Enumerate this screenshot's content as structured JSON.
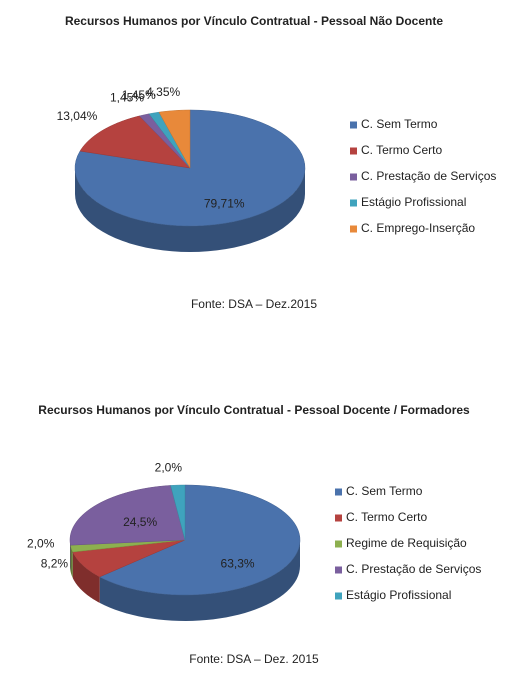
{
  "chart_data": [
    {
      "type": "pie",
      "title": "Recursos Humanos por Vínculo Contratual - Pessoal Não Docente",
      "categories": [
        "C. Sem Termo",
        "C. Termo Certo",
        "C. Prestação de Serviços",
        "Estágio Profissional",
        "C. Emprego-Inserção"
      ],
      "values": [
        79.71,
        13.04,
        1.45,
        1.45,
        4.35
      ],
      "value_labels": [
        "79,71%",
        "13,04%",
        "1,45%",
        "1,45%",
        "4,35%"
      ],
      "colors": [
        "#4a72ac",
        "#b5423f",
        "#7a5f9e",
        "#3fa3bd",
        "#e8893a"
      ],
      "source": "Fonte:  DSA – Dez.2015"
    },
    {
      "type": "pie",
      "title": "Recursos Humanos por Vínculo Contratual - Pessoal Docente / Formadores",
      "categories": [
        "C. Sem Termo",
        "C. Termo Certo",
        "Regime de Requisição",
        "C. Prestação de Serviços",
        "Estágio Profissional"
      ],
      "values": [
        63.3,
        8.2,
        2.0,
        24.5,
        2.0
      ],
      "value_labels": [
        "63,3%",
        "8,2%",
        "2,0%",
        "24,5%",
        "2,0%"
      ],
      "colors": [
        "#4a72ac",
        "#b5423f",
        "#8db04f",
        "#7a5f9e",
        "#3fa3bd"
      ],
      "source": "Fonte:  DSA – Dez. 2015"
    }
  ]
}
